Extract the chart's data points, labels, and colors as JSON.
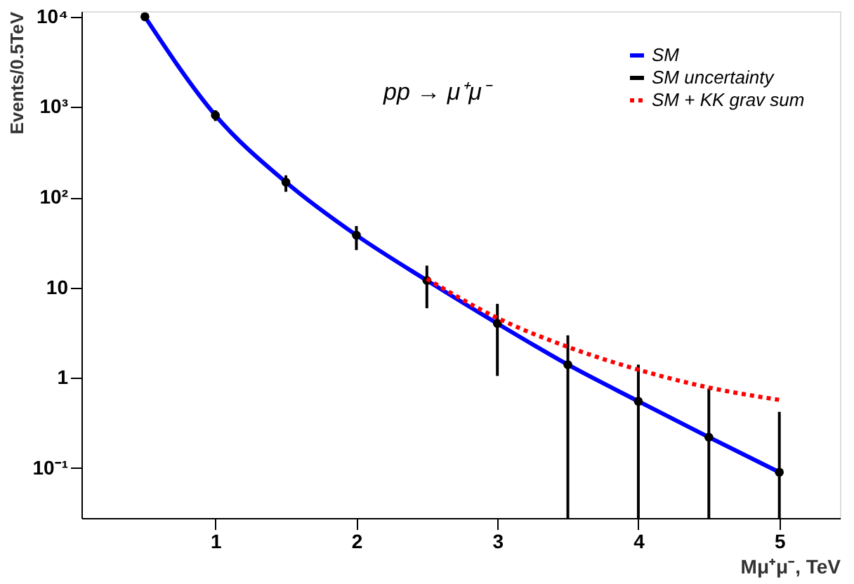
{
  "chart_data": {
    "type": "line",
    "xlabel": "Mμ⁺μ⁻, TeV",
    "ylabel": "Events/0.5TeV",
    "annotations": [
      "pp → μ⁺μ⁻"
    ],
    "log": "y",
    "grid": false,
    "legend": "top right",
    "xlim": [
      0.05,
      5.43
    ],
    "xticks": [
      1,
      2,
      3,
      4,
      5
    ],
    "ylim": [
      0.028,
      11500
    ],
    "yticks": [
      {
        "value": 0.1,
        "label": "10⁻¹"
      },
      1,
      10,
      {
        "value": 100,
        "label": "10²"
      },
      {
        "value": 1000,
        "label": "10³"
      },
      {
        "value": 10000,
        "label": "10⁴"
      }
    ],
    "series": [
      {
        "name": "SM",
        "color": "#0000ff",
        "line_style": "solid",
        "x": [
          0.5,
          1,
          1.5,
          2,
          2.5,
          3,
          3.5,
          4,
          4.5,
          5
        ],
        "values": [
          10000,
          810,
          147,
          38,
          12,
          4.0,
          1.4,
          0.55,
          0.22,
          0.09
        ]
      },
      {
        "name": "SM uncertainty",
        "type": "scatter",
        "color": "#000000",
        "marker": "circle",
        "x": [
          0.5,
          1,
          1.5,
          2,
          2.5,
          3,
          3.5,
          4,
          4.5,
          5
        ],
        "values": [
          10000,
          810,
          147,
          38,
          12,
          4.0,
          1.4,
          0.55,
          0.22,
          0.09
        ],
        "errors": [
          null,
          [
            700,
            920
          ],
          [
            115,
            175
          ],
          [
            26,
            48
          ],
          [
            5.9,
            17.5
          ],
          [
            1.05,
            6.6
          ],
          [
            0.028,
            2.95
          ],
          [
            0.028,
            1.4
          ],
          [
            0.028,
            0.76
          ],
          [
            0.028,
            0.42
          ]
        ]
      },
      {
        "name": "SM + KK grav sum",
        "color": "#ff0000",
        "line_style": "dotted",
        "x": [
          2.5,
          3,
          3.5,
          4,
          4.5,
          5
        ],
        "values": [
          12.5,
          4.6,
          2.2,
          1.23,
          0.78,
          0.57
        ]
      }
    ]
  }
}
